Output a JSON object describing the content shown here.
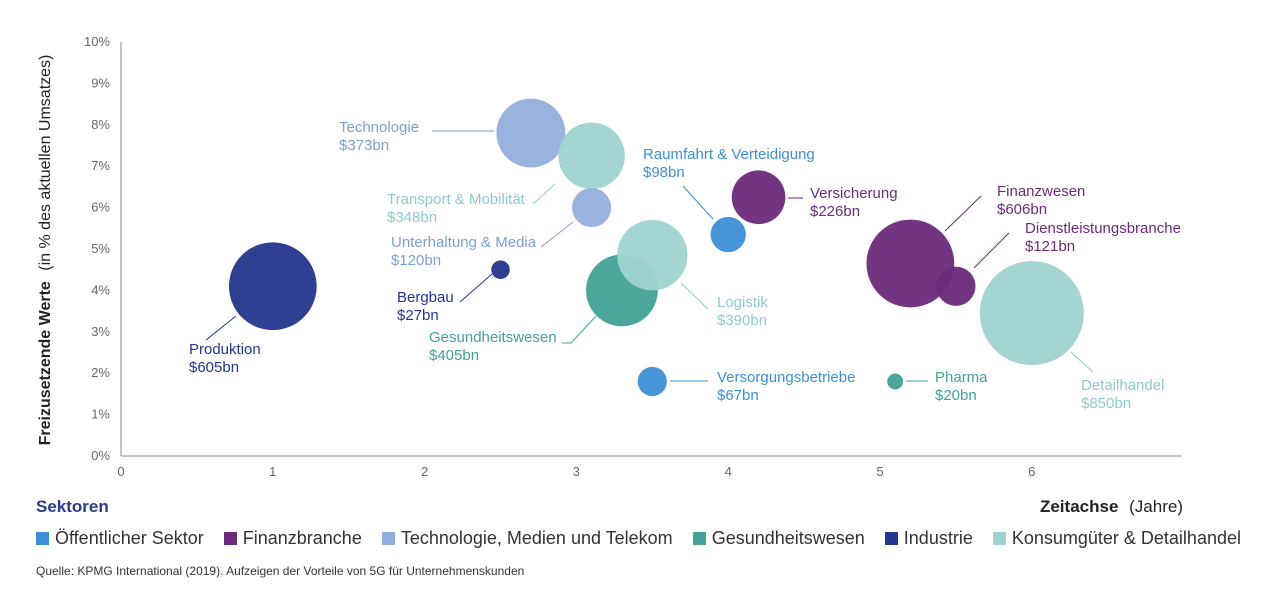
{
  "chart_data": {
    "type": "scatter",
    "title": "",
    "ylabel_bold": "Freizusetzende Werte",
    "ylabel_rest": "(in % des aktuellen Umsatzes)",
    "xlabel_bold": "Zeitachse",
    "xlabel_rest": "(Jahre)",
    "xlim": [
      0,
      7
    ],
    "ylim": [
      0,
      10
    ],
    "x_ticks": [
      "0",
      "1",
      "2",
      "3",
      "4",
      "5",
      "6"
    ],
    "y_ticks": [
      "0%",
      "1%",
      "2%",
      "3%",
      "4%",
      "5%",
      "6%",
      "7%",
      "8%",
      "9%",
      "10%"
    ],
    "size_unit": "bn USD",
    "series": [
      {
        "name": "Öffentlicher Sektor",
        "color": "#3d8fd6"
      },
      {
        "name": "Finanzbranche",
        "color": "#6b2a7a"
      },
      {
        "name": "Technologie, Medien und Telekom",
        "color": "#93aedc"
      },
      {
        "name": "Gesundheitswesen",
        "color": "#43a197"
      },
      {
        "name": "Industrie",
        "color": "#24358c"
      },
      {
        "name": "Konsumgüter & Detailhandel",
        "color": "#9fd3cf"
      }
    ],
    "points": [
      {
        "label": "Produktion",
        "value_label": "$605bn",
        "x": 1.0,
        "y": 4.1,
        "size": 605,
        "series": 4
      },
      {
        "label": "Technologie",
        "value_label": "$373bn",
        "x": 2.7,
        "y": 7.8,
        "size": 373,
        "series": 2
      },
      {
        "label": "Transport & Mobilität",
        "value_label": "$348bn",
        "x": 3.1,
        "y": 7.25,
        "size": 348,
        "series": 5
      },
      {
        "label": "Unterhaltung & Media",
        "value_label": "$120bn",
        "x": 3.1,
        "y": 6.0,
        "size": 120,
        "series": 2
      },
      {
        "label": "Bergbau",
        "value_label": "$27bn",
        "x": 2.5,
        "y": 4.5,
        "size": 27,
        "series": 4
      },
      {
        "label": "Gesundheitswesen",
        "value_label": "$405bn",
        "x": 3.3,
        "y": 4.0,
        "size": 405,
        "series": 3
      },
      {
        "label": "Logistik",
        "value_label": "$390bn",
        "x": 3.5,
        "y": 4.85,
        "size": 390,
        "series": 5
      },
      {
        "label": "Raumfahrt & Verteidigung",
        "value_label": "$98bn",
        "x": 4.0,
        "y": 5.35,
        "size": 98,
        "series": 0
      },
      {
        "label": "Versicherung",
        "value_label": "$226bn",
        "x": 4.2,
        "y": 6.25,
        "size": 226,
        "series": 1
      },
      {
        "label": "Versorgungsbetriebe",
        "value_label": "$67bn",
        "x": 3.5,
        "y": 1.8,
        "size": 67,
        "series": 0
      },
      {
        "label": "Finanzwesen",
        "value_label": "$606bn",
        "x": 5.2,
        "y": 4.65,
        "size": 606,
        "series": 1
      },
      {
        "label": "Dienstleistungsbranche",
        "value_label": "$121bn",
        "x": 5.5,
        "y": 4.1,
        "size": 121,
        "series": 1
      },
      {
        "label": "Detailhandel",
        "value_label": "$850bn",
        "x": 6.0,
        "y": 3.45,
        "size": 850,
        "series": 5
      },
      {
        "label": "Pharma",
        "value_label": "$20bn",
        "x": 5.1,
        "y": 1.8,
        "size": 20,
        "series": 3
      }
    ]
  },
  "legend_title": "Sektoren",
  "source": "Quelle: KPMG International (2019). Aufzeigen der Vorteile von 5G für Unternehmenskunden"
}
